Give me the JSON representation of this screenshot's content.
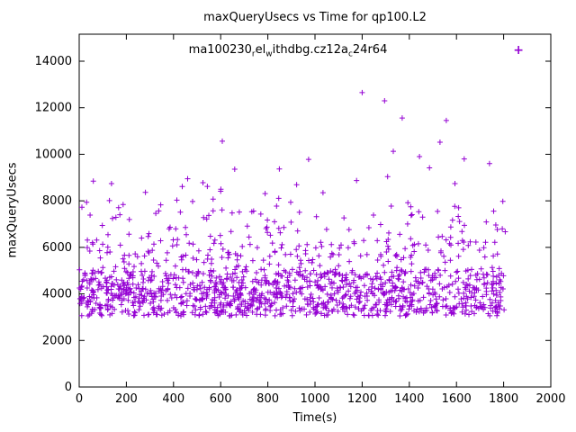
{
  "figure": {
    "title": "maxQueryUsecs vs Time for qp100.L2",
    "xlabel": "Time(s)",
    "ylabel": "maxQueryUsecs"
  },
  "chart_data": {
    "type": "scatter",
    "title": "maxQueryUsecs vs Time for qp100.L2",
    "xlabel": "Time(s)",
    "ylabel": "maxQueryUsecs",
    "xlim": [
      0,
      2000
    ],
    "ylim": [
      0,
      15160
    ],
    "xticks": [
      0,
      200,
      400,
      600,
      800,
      1000,
      1200,
      1400,
      1600,
      1800,
      2000
    ],
    "yticks": [
      0,
      2000,
      4000,
      6000,
      8000,
      10000,
      12000,
      14000
    ],
    "grid": false,
    "legend_position": "top-center-inside",
    "marker": "+",
    "marker_color": "#9400d3",
    "series": [
      {
        "name": "ma100230_rel_withdbg.cz12a_c24r64",
        "name_segments": [
          {
            "t": "ma100230"
          },
          {
            "t": "r",
            "sub": true
          },
          {
            "t": "el"
          },
          {
            "t": "w",
            "sub": true
          },
          {
            "t": "ithdbg.cz12a"
          },
          {
            "t": "c",
            "sub": true
          },
          {
            "t": "24r64"
          }
        ],
        "x_range": [
          0,
          1810
        ],
        "dense_band_y": [
          3000,
          5000
        ],
        "outlier_points": [
          [
            1200,
            12650
          ],
          [
            1295,
            12300
          ],
          [
            1370,
            11560
          ],
          [
            1557,
            11450
          ],
          [
            607,
            10560
          ],
          [
            1530,
            10520
          ],
          [
            1332,
            10130
          ],
          [
            973,
            9780
          ],
          [
            1633,
            9800
          ],
          [
            1443,
            9900
          ],
          [
            1740,
            9600
          ],
          [
            460,
            8950
          ],
          [
            60,
            8850
          ],
          [
            137,
            8740
          ],
          [
            1034,
            8350
          ],
          [
            481,
            7970
          ]
        ],
        "cloud": {
          "n": 1400,
          "seed": 987654321,
          "bands": [
            {
              "p": 0.55,
              "y0": 3050,
              "span": 1250
            },
            {
              "p": 0.8,
              "y0": 4250,
              "span": 800
            },
            {
              "p": 0.92,
              "y0": 5000,
              "span": 1250
            },
            {
              "p": 0.975,
              "y0": 6250,
              "span": 1400
            },
            {
              "p": 1.0,
              "y0": 7650,
              "span": 1850
            }
          ]
        }
      }
    ]
  }
}
